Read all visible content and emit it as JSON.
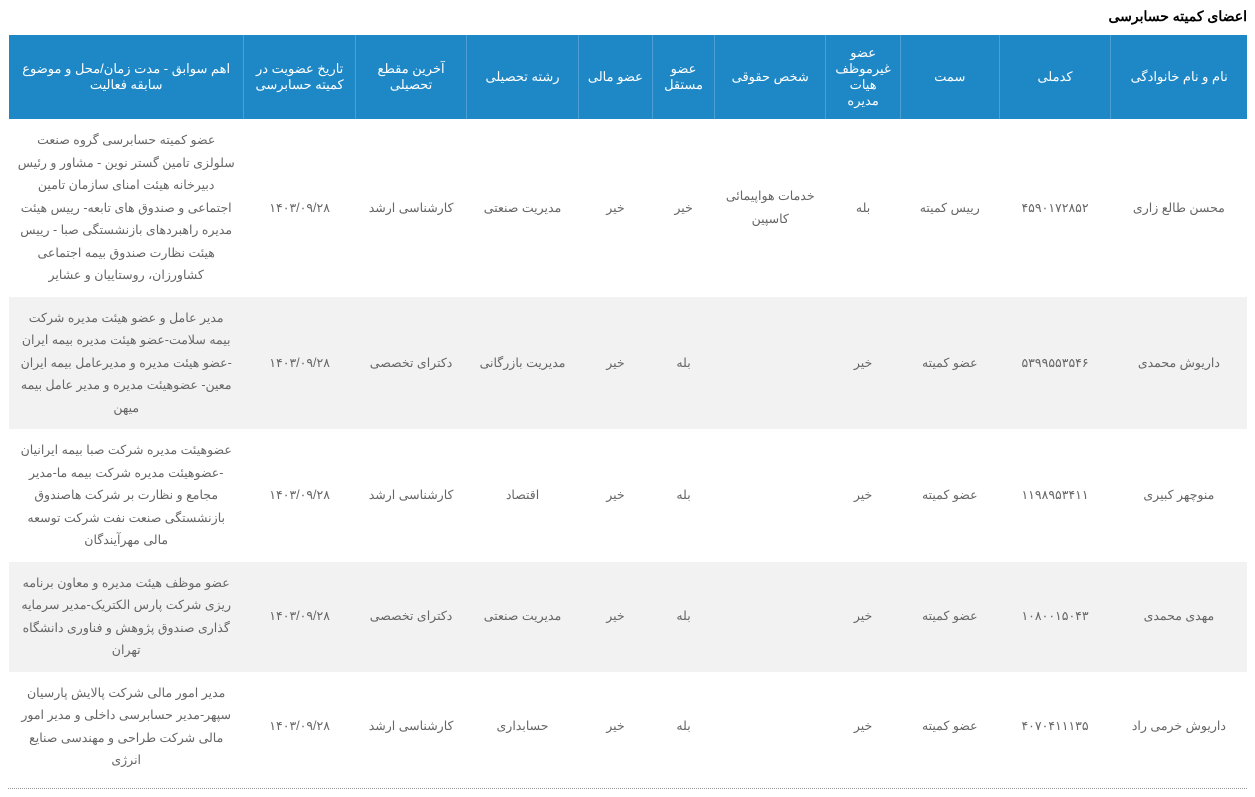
{
  "title": "اعضای کمیته حسابرسی",
  "table": {
    "header_bg": "#1e88c7",
    "header_color": "#ffffff",
    "row_alt_bg": "#f2f2f2",
    "row_bg": "#ffffff",
    "text_color": "#666666",
    "columns": [
      "نام و نام خانوادگی",
      "کدملی",
      "سمت",
      "عضو غیرموظف هیات مدیره",
      "شخص حقوقی",
      "عضو مستقل",
      "عضو مالی",
      "رشته تحصیلی",
      "آخرین مقطع تحصیلی",
      "تاریخ عضویت در کمیته حسابرسی",
      "اهم سوابق - مدت زمان/محل و موضوع سابقه فعالیت"
    ],
    "rows": [
      {
        "name": "محسن طالع زاری",
        "code": "۴۵۹۰۱۷۲۸۵۲",
        "position": "رییس کمیته",
        "nonemp": "بله",
        "legal": "خدمات هواپیمائی کاسپین",
        "indep": "خیر",
        "fin": "خیر",
        "field": "مدیریت صنعتی",
        "degree": "کارشناسی ارشد",
        "date": "۱۴۰۳/۰۹/۲۸",
        "exp": "عضو کمیته حسابرسی گروه صنعت سلولزی تامین گستر نوین - مشاور و رئیس دبیرخانه هیئت امنای سازمان تامین اجتماعی و صندوق های تابعه- رییس هیئت مدیره راهبردهای بازنشستگی صبا - رییس هیئت نظارت صندوق بیمه اجتماعی کشاورزان، روستاییان و عشایر"
      },
      {
        "name": "داریوش محمدی",
        "code": "۵۳۹۹۵۵۳۵۴۶",
        "position": "عضو کمیته",
        "nonemp": "خیر",
        "legal": "",
        "indep": "بله",
        "fin": "خیر",
        "field": "مدیریت بازرگانی",
        "degree": "دکترای تخصصی",
        "date": "۱۴۰۳/۰۹/۲۸",
        "exp": "مدیر عامل و عضو هیئت مدیره شرکت بیمه سلامت-عضو هیئت مدیره بیمه ایران -عضو هیئت مدیره و مدیرعامل بیمه ایران معین- عضوهیئت مدیره و مدیر عامل بیمه میهن"
      },
      {
        "name": "منوچهر کبیری",
        "code": "۱۱۹۸۹۵۳۴۱۱",
        "position": "عضو کمیته",
        "nonemp": "خیر",
        "legal": "",
        "indep": "بله",
        "fin": "خیر",
        "field": "اقتصاد",
        "degree": "کارشناسی ارشد",
        "date": "۱۴۰۳/۰۹/۲۸",
        "exp": "عضوهیئت مدیره شرکت صبا بیمه ایرانیان -عضوهیئت مدیره شرکت بیمه ما-مدیر مجامع و نظارت بر شرکت هاصندوق بازنشستگی صنعت نفت شرکت توسعه مالی مهرآیندگان"
      },
      {
        "name": "مهدی محمدی",
        "code": "۱۰۸۰۰۱۵۰۴۳",
        "position": "عضو کمیته",
        "nonemp": "خیر",
        "legal": "",
        "indep": "بله",
        "fin": "خیر",
        "field": "مدیریت صنعتی",
        "degree": "دکترای تخصصی",
        "date": "۱۴۰۳/۰۹/۲۸",
        "exp": "عضو موظف هیئت مدیره و معاون برنامه ریزی شرکت پارس الکتریک-مدیر سرمایه گذاری صندوق پژوهش و فناوری دانشگاه تهران"
      },
      {
        "name": "داریوش خرمی راد",
        "code": "۴۰۷۰۴۱۱۱۳۵",
        "position": "عضو کمیته",
        "nonemp": "خیر",
        "legal": "",
        "indep": "بله",
        "fin": "خیر",
        "field": "حسابداری",
        "degree": "کارشناسی ارشد",
        "date": "۱۴۰۳/۰۹/۲۸",
        "exp": "مدیر امور مالی شرکت پالایش پارسیان سپهر-مدیر حسابرسی داخلی و مدیر امور مالی شرکت طراحی و مهندسی صنایع انرژی"
      }
    ]
  }
}
